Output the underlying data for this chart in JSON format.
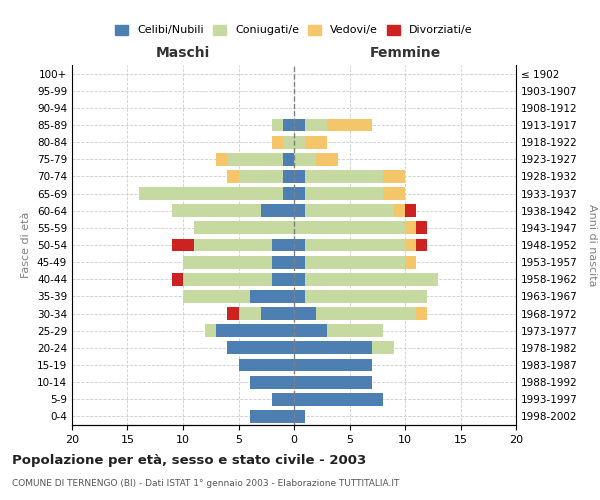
{
  "age_groups": [
    "100+",
    "95-99",
    "90-94",
    "85-89",
    "80-84",
    "75-79",
    "70-74",
    "65-69",
    "60-64",
    "55-59",
    "50-54",
    "45-49",
    "40-44",
    "35-39",
    "30-34",
    "25-29",
    "20-24",
    "15-19",
    "10-14",
    "5-9",
    "0-4"
  ],
  "birth_years": [
    "≤ 1902",
    "1903-1907",
    "1908-1912",
    "1913-1917",
    "1918-1922",
    "1923-1927",
    "1928-1932",
    "1933-1937",
    "1938-1942",
    "1943-1947",
    "1948-1952",
    "1953-1957",
    "1958-1962",
    "1963-1967",
    "1968-1972",
    "1973-1977",
    "1978-1982",
    "1983-1987",
    "1988-1992",
    "1993-1997",
    "1998-2002"
  ],
  "males": {
    "celibi": [
      0,
      0,
      0,
      1,
      0,
      1,
      1,
      1,
      3,
      0,
      2,
      2,
      2,
      4,
      3,
      7,
      6,
      5,
      4,
      2,
      4
    ],
    "coniugati": [
      0,
      0,
      0,
      1,
      1,
      5,
      4,
      13,
      8,
      9,
      7,
      8,
      8,
      6,
      2,
      1,
      0,
      0,
      0,
      0,
      0
    ],
    "vedovi": [
      0,
      0,
      0,
      0,
      1,
      1,
      1,
      0,
      0,
      0,
      0,
      0,
      0,
      0,
      0,
      0,
      0,
      0,
      0,
      0,
      0
    ],
    "divorziati": [
      0,
      0,
      0,
      0,
      0,
      0,
      0,
      0,
      0,
      0,
      2,
      0,
      1,
      0,
      1,
      0,
      0,
      0,
      0,
      0,
      0
    ]
  },
  "females": {
    "nubili": [
      0,
      0,
      0,
      1,
      0,
      0,
      1,
      1,
      1,
      0,
      1,
      1,
      1,
      1,
      2,
      3,
      7,
      7,
      7,
      8,
      1
    ],
    "coniugate": [
      0,
      0,
      0,
      2,
      1,
      2,
      7,
      7,
      8,
      10,
      9,
      9,
      12,
      11,
      9,
      5,
      2,
      0,
      0,
      0,
      0
    ],
    "vedove": [
      0,
      0,
      0,
      4,
      2,
      2,
      2,
      2,
      1,
      1,
      1,
      1,
      0,
      0,
      1,
      0,
      0,
      0,
      0,
      0,
      0
    ],
    "divorziate": [
      0,
      0,
      0,
      0,
      0,
      0,
      0,
      0,
      1,
      1,
      1,
      0,
      0,
      0,
      0,
      0,
      0,
      0,
      0,
      0,
      0
    ]
  },
  "colors": {
    "celibi": "#4d7fb3",
    "coniugati": "#c5d9a0",
    "vedovi": "#f5c56a",
    "divorziati": "#cc2222"
  },
  "legend_labels": [
    "Celibi/Nubili",
    "Coniugati/e",
    "Vedovi/e",
    "Divorziati/e"
  ],
  "title": "Popolazione per età, sesso e stato civile - 2003",
  "subtitle": "COMUNE DI TERNENGO (BI) - Dati ISTAT 1° gennaio 2003 - Elaborazione TUTTITALIA.IT",
  "xlabel_left": "Maschi",
  "xlabel_right": "Femmine",
  "ylabel_left": "Fasce di età",
  "ylabel_right": "Anni di nascita",
  "xlim": 20
}
